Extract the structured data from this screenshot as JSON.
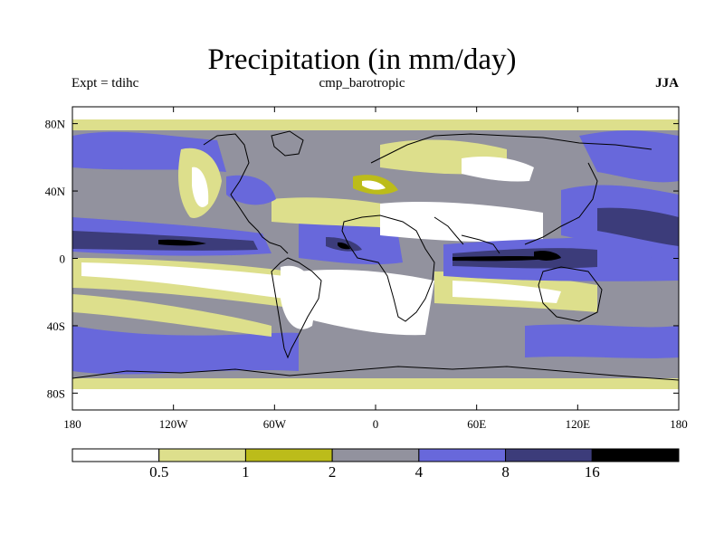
{
  "chart_data": {
    "type": "heatmap",
    "title": "Precipitation (in mm/day)",
    "subtitle_left": "Expt = tdihc",
    "subtitle_center": "cmp_barotropic",
    "subtitle_right": "JJA",
    "x_ticks": [
      "180",
      "120W",
      "60W",
      "0",
      "60E",
      "120E",
      "180"
    ],
    "y_ticks": [
      "80N",
      "40N",
      "0",
      "40S",
      "80S"
    ],
    "x_range": [
      -180,
      180
    ],
    "y_range": [
      -90,
      90
    ],
    "colorbar": {
      "labels": [
        "0.5",
        "1",
        "2",
        "4",
        "8",
        "16"
      ],
      "colors": [
        "#ffffff",
        "#dddf8c",
        "#bcbc1a",
        "#92929e",
        "#6868db",
        "#3c3c7a",
        "#000000"
      ]
    },
    "grid": false
  }
}
